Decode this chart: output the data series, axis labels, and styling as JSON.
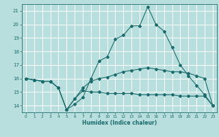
{
  "title": "",
  "xlabel": "Humidex (Indice chaleur)",
  "ylabel": "",
  "background_color": "#b8dede",
  "grid_color": "#ffffff",
  "line_color": "#1a6b6b",
  "x": [
    0,
    1,
    2,
    3,
    4,
    5,
    6,
    7,
    8,
    9,
    10,
    11,
    12,
    13,
    14,
    15,
    16,
    17,
    18,
    19,
    20,
    21,
    22,
    23
  ],
  "line1": [
    16.0,
    15.9,
    15.8,
    15.8,
    15.3,
    13.7,
    14.1,
    14.6,
    16.0,
    17.3,
    17.6,
    18.9,
    19.2,
    19.9,
    19.9,
    21.3,
    20.0,
    19.5,
    18.3,
    17.0,
    16.2,
    15.5,
    14.8,
    14.0
  ],
  "line2": [
    16.0,
    15.9,
    15.8,
    15.8,
    15.3,
    13.7,
    14.5,
    15.1,
    15.0,
    15.0,
    14.9,
    14.9,
    14.9,
    14.9,
    14.8,
    14.8,
    14.8,
    14.8,
    14.8,
    14.7,
    14.7,
    14.7,
    14.7,
    14.0
  ],
  "line3": [
    16.0,
    15.9,
    15.8,
    15.8,
    15.3,
    13.7,
    14.5,
    15.3,
    15.8,
    16.0,
    16.1,
    16.3,
    16.5,
    16.6,
    16.7,
    16.8,
    16.7,
    16.6,
    16.5,
    16.5,
    16.4,
    16.2,
    16.0,
    14.0
  ],
  "ylim": [
    13.5,
    21.5
  ],
  "yticks": [
    14,
    15,
    16,
    17,
    18,
    19,
    20,
    21
  ],
  "xlim": [
    -0.5,
    23.5
  ],
  "xticks": [
    0,
    1,
    2,
    3,
    4,
    5,
    6,
    7,
    8,
    9,
    10,
    11,
    12,
    13,
    14,
    15,
    16,
    17,
    18,
    19,
    20,
    21,
    22,
    23
  ]
}
